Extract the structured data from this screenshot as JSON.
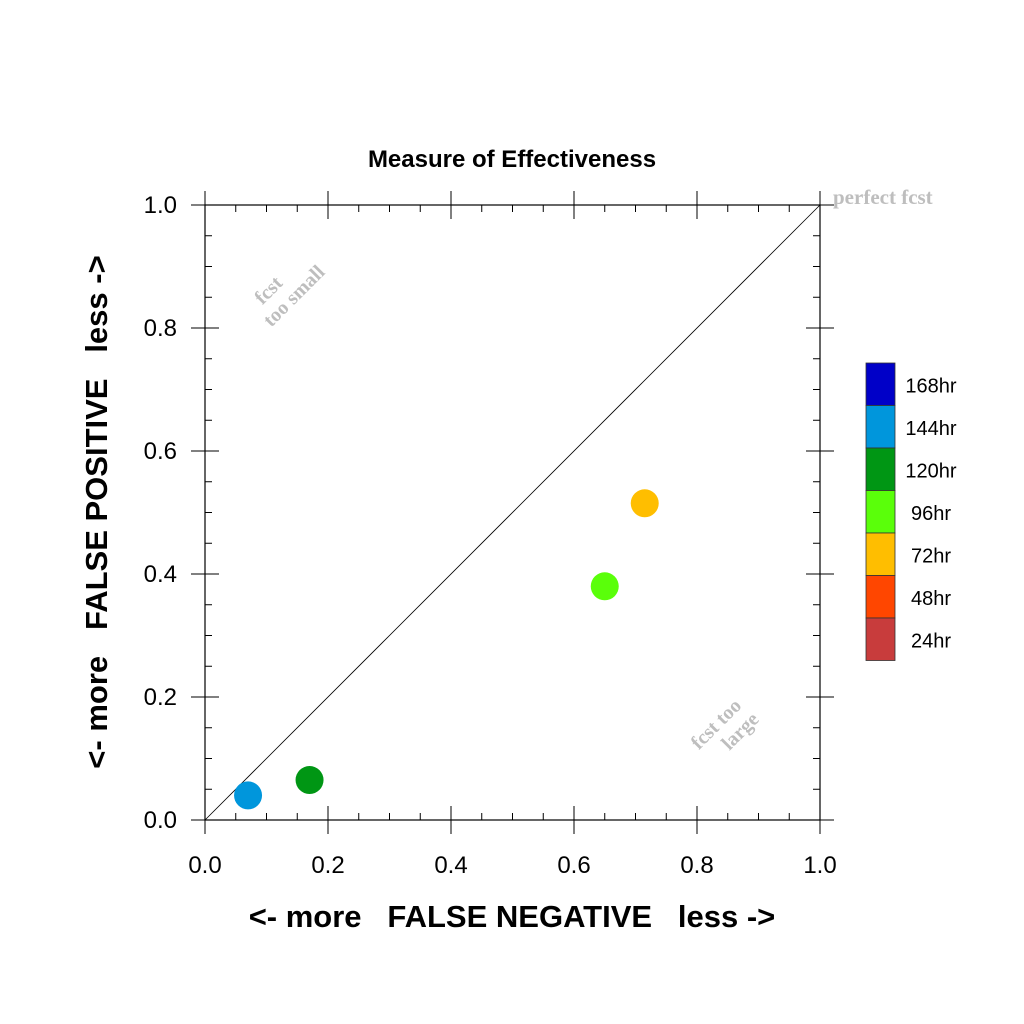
{
  "chart_data": {
    "type": "scatter",
    "title": "Measure of Effectiveness",
    "xlabel": "<- more   FALSE NEGATIVE   less ->",
    "ylabel": "<- more   FALSE POSITIVE   less ->",
    "xlim": [
      0.0,
      1.0
    ],
    "ylim": [
      0.0,
      1.0
    ],
    "xticks": [
      "0.0",
      "0.2",
      "0.4",
      "0.6",
      "0.8",
      "1.0"
    ],
    "yticks": [
      "0.0",
      "0.2",
      "0.4",
      "0.6",
      "0.8",
      "1.0"
    ],
    "grid": false,
    "diagonal_line": true,
    "points": [
      {
        "x": 0.07,
        "y": 0.04,
        "lead": "144hr",
        "color": "#0096dc"
      },
      {
        "x": 0.17,
        "y": 0.065,
        "lead": "120hr",
        "color": "#009614"
      },
      {
        "x": 0.65,
        "y": 0.38,
        "lead": "96hr",
        "color": "#5aff0a"
      },
      {
        "x": 0.715,
        "y": 0.515,
        "lead": "72hr",
        "color": "#ffbe00"
      }
    ],
    "annotations": {
      "perfect": "perfect fcst",
      "too_small_1": "fcst",
      "too_small_2": "too small",
      "too_large_1": "fcst too",
      "too_large_2": "large"
    },
    "legend": {
      "placement": "right",
      "items": [
        {
          "label": "168hr",
          "color": "#0000c8"
        },
        {
          "label": "144hr",
          "color": "#0096dc"
        },
        {
          "label": "120hr",
          "color": "#009614"
        },
        {
          "label": "96hr",
          "color": "#5aff0a"
        },
        {
          "label": "72hr",
          "color": "#ffbe00"
        },
        {
          "label": "48hr",
          "color": "#ff4600"
        },
        {
          "label": "24hr",
          "color": "#c83c3c"
        }
      ]
    },
    "colors": {
      "annotation": "#bebebe",
      "axis": "#000000"
    }
  }
}
